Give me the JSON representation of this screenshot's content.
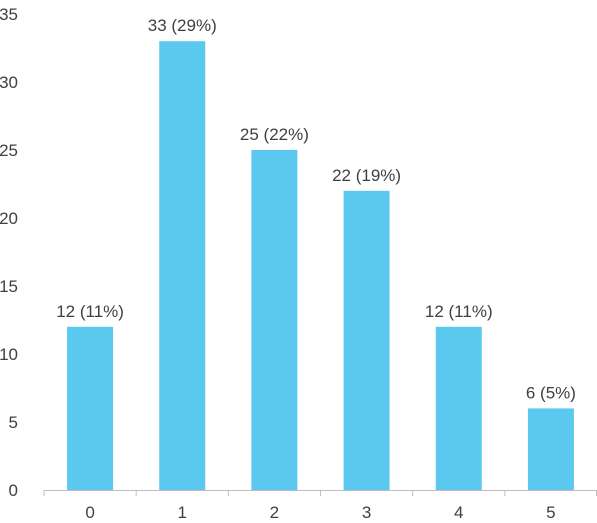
{
  "chart_data": {
    "type": "bar",
    "title": "",
    "xlabel": "",
    "ylabel": "",
    "categories": [
      "0",
      "1",
      "2",
      "3",
      "4",
      "5"
    ],
    "values": [
      12,
      33,
      25,
      22,
      12,
      6
    ],
    "data_labels": [
      "12 (11%)",
      "33 (29%)",
      "25 (22%)",
      "22 (19%)",
      "12 (11%)",
      "6 (5%)"
    ],
    "ylim": [
      0,
      35
    ],
    "yticks": [
      0,
      5,
      10,
      15,
      20,
      25,
      30,
      35
    ],
    "ytick_labels": [
      "0",
      "5",
      "10",
      "15",
      "20",
      "25",
      "30",
      "35"
    ],
    "grid": false,
    "legend": "none",
    "bar_color": "#5BC8F0",
    "axis_color": "#BFBFBF",
    "text_color": "#404040"
  }
}
